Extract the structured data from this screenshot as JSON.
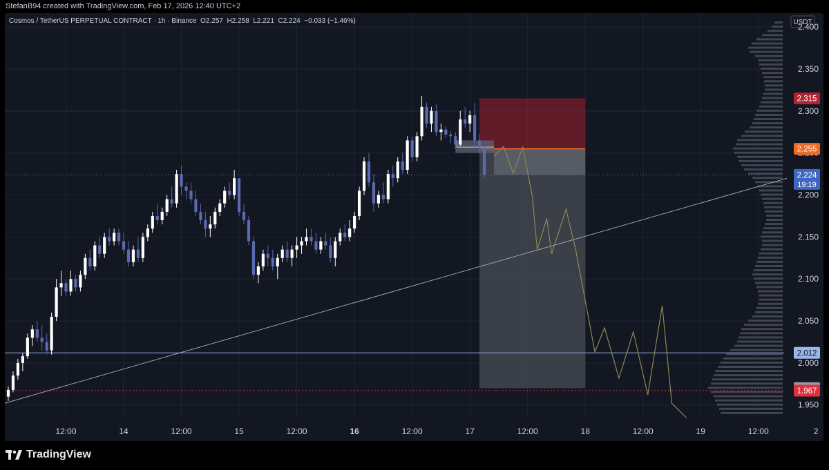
{
  "header": {
    "attribution": "StefanB94 created with TradingView.com, Feb 17, 2026 12:40 UTC+2"
  },
  "legend": {
    "symbol": "Cosmos / TetherUS PERPETUAL CONTRACT · 1h · Binance",
    "open": "O2.257",
    "high": "H2.258",
    "low": "L2.221",
    "close": "C2.224",
    "change": "−0.033 (−1.46%)"
  },
  "footer": {
    "brand": "TradingView"
  },
  "colors": {
    "background": "#131722",
    "bull": "#ffffff",
    "bear": "#5b6ab0",
    "stop_zone": "#7a1f2b",
    "target_zone": "#4a4d55",
    "price_line": "#4f7ad1",
    "support_line": "#8aa4d8",
    "projection": "#8c8a55"
  },
  "chart_data": {
    "type": "candlestick",
    "currency": "USDT",
    "ylim": [
      1.935,
      2.41
    ],
    "y_ticks": [
      "2.400",
      "2.350",
      "2.300",
      "2.250",
      "2.200",
      "2.150",
      "2.100",
      "2.050",
      "2.000",
      "1.950"
    ],
    "x_ticks": [
      {
        "label": "12:00",
        "t": 12,
        "bold": false
      },
      {
        "label": "14",
        "t": 24,
        "bold": false
      },
      {
        "label": "12:00",
        "t": 36,
        "bold": false
      },
      {
        "label": "15",
        "t": 48,
        "bold": false
      },
      {
        "label": "12:00",
        "t": 60,
        "bold": false
      },
      {
        "label": "16",
        "t": 72,
        "bold": true
      },
      {
        "label": "12:00",
        "t": 84,
        "bold": false
      },
      {
        "label": "17",
        "t": 96,
        "bold": false
      },
      {
        "label": "12:00",
        "t": 108,
        "bold": false
      },
      {
        "label": "18",
        "t": 120,
        "bold": false
      },
      {
        "label": "12:00",
        "t": 132,
        "bold": false
      },
      {
        "label": "19",
        "t": 144,
        "bold": false
      },
      {
        "label": "12:00",
        "t": 156,
        "bold": false
      },
      {
        "label": "2",
        "t": 168,
        "bold": false
      }
    ],
    "candles": [
      [
        1.96,
        1.972,
        1.955,
        1.968
      ],
      [
        1.968,
        1.99,
        1.965,
        1.985
      ],
      [
        1.985,
        2.005,
        1.98,
        2.0
      ],
      [
        2.0,
        2.012,
        1.99,
        2.008
      ],
      [
        2.008,
        2.035,
        2.005,
        2.03
      ],
      [
        2.03,
        2.045,
        2.02,
        2.04
      ],
      [
        2.04,
        2.05,
        2.025,
        2.03
      ],
      [
        2.03,
        2.045,
        2.015,
        2.025
      ],
      [
        2.025,
        2.035,
        2.01,
        2.015
      ],
      [
        2.015,
        2.06,
        2.01,
        2.055
      ],
      [
        2.055,
        2.1,
        2.05,
        2.09
      ],
      [
        2.09,
        2.11,
        2.08,
        2.095
      ],
      [
        2.095,
        2.1,
        2.08,
        2.085
      ],
      [
        2.085,
        2.11,
        2.08,
        2.1
      ],
      [
        2.1,
        2.105,
        2.085,
        2.09
      ],
      [
        2.09,
        2.11,
        2.085,
        2.105
      ],
      [
        2.105,
        2.13,
        2.1,
        2.125
      ],
      [
        2.125,
        2.135,
        2.11,
        2.115
      ],
      [
        2.115,
        2.145,
        2.11,
        2.14
      ],
      [
        2.14,
        2.15,
        2.125,
        2.13
      ],
      [
        2.13,
        2.155,
        2.125,
        2.15
      ],
      [
        2.15,
        2.16,
        2.14,
        2.145
      ],
      [
        2.145,
        2.16,
        2.14,
        2.155
      ],
      [
        2.155,
        2.16,
        2.14,
        2.145
      ],
      [
        2.145,
        2.155,
        2.13,
        2.135
      ],
      [
        2.135,
        2.145,
        2.115,
        2.12
      ],
      [
        2.12,
        2.14,
        2.115,
        2.135
      ],
      [
        2.135,
        2.15,
        2.12,
        2.125
      ],
      [
        2.125,
        2.155,
        2.12,
        2.15
      ],
      [
        2.15,
        2.165,
        2.145,
        2.16
      ],
      [
        2.16,
        2.18,
        2.155,
        2.175
      ],
      [
        2.175,
        2.19,
        2.165,
        2.17
      ],
      [
        2.17,
        2.185,
        2.165,
        2.18
      ],
      [
        2.18,
        2.2,
        2.175,
        2.195
      ],
      [
        2.195,
        2.21,
        2.185,
        2.19
      ],
      [
        2.19,
        2.23,
        2.185,
        2.225
      ],
      [
        2.225,
        2.235,
        2.2,
        2.21
      ],
      [
        2.21,
        2.215,
        2.195,
        2.205
      ],
      [
        2.205,
        2.215,
        2.19,
        2.195
      ],
      [
        2.195,
        2.205,
        2.175,
        2.18
      ],
      [
        2.18,
        2.19,
        2.165,
        2.17
      ],
      [
        2.17,
        2.18,
        2.15,
        2.16
      ],
      [
        2.16,
        2.175,
        2.15,
        2.165
      ],
      [
        2.165,
        2.185,
        2.16,
        2.18
      ],
      [
        2.18,
        2.195,
        2.175,
        2.19
      ],
      [
        2.19,
        2.21,
        2.185,
        2.205
      ],
      [
        2.205,
        2.215,
        2.195,
        2.2
      ],
      [
        2.2,
        2.23,
        2.195,
        2.22
      ],
      [
        2.22,
        2.22,
        2.175,
        2.18
      ],
      [
        2.18,
        2.19,
        2.165,
        2.17
      ],
      [
        2.17,
        2.175,
        2.14,
        2.145
      ],
      [
        2.145,
        2.15,
        2.1,
        2.105
      ],
      [
        2.105,
        2.12,
        2.095,
        2.115
      ],
      [
        2.115,
        2.135,
        2.11,
        2.13
      ],
      [
        2.13,
        2.14,
        2.115,
        2.125
      ],
      [
        2.125,
        2.135,
        2.11,
        2.115
      ],
      [
        2.115,
        2.13,
        2.1,
        2.125
      ],
      [
        2.125,
        2.14,
        2.12,
        2.135
      ],
      [
        2.135,
        2.145,
        2.12,
        2.125
      ],
      [
        2.125,
        2.14,
        2.115,
        2.135
      ],
      [
        2.135,
        2.15,
        2.125,
        2.14
      ],
      [
        2.14,
        2.15,
        2.13,
        2.145
      ],
      [
        2.145,
        2.16,
        2.14,
        2.15
      ],
      [
        2.15,
        2.16,
        2.14,
        2.145
      ],
      [
        2.145,
        2.155,
        2.13,
        2.135
      ],
      [
        2.135,
        2.15,
        2.13,
        2.145
      ],
      [
        2.145,
        2.155,
        2.135,
        2.14
      ],
      [
        2.14,
        2.15,
        2.12,
        2.125
      ],
      [
        2.125,
        2.15,
        2.115,
        2.145
      ],
      [
        2.145,
        2.16,
        2.14,
        2.155
      ],
      [
        2.155,
        2.165,
        2.145,
        2.15
      ],
      [
        2.15,
        2.17,
        2.145,
        2.16
      ],
      [
        2.16,
        2.18,
        2.155,
        2.175
      ],
      [
        2.175,
        2.21,
        2.17,
        2.205
      ],
      [
        2.205,
        2.245,
        2.2,
        2.24
      ],
      [
        2.24,
        2.25,
        2.21,
        2.215
      ],
      [
        2.215,
        2.225,
        2.18,
        2.19
      ],
      [
        2.19,
        2.205,
        2.185,
        2.2
      ],
      [
        2.2,
        2.215,
        2.19,
        2.195
      ],
      [
        2.195,
        2.23,
        2.19,
        2.225
      ],
      [
        2.225,
        2.235,
        2.21,
        2.22
      ],
      [
        2.22,
        2.245,
        2.215,
        2.24
      ],
      [
        2.24,
        2.25,
        2.225,
        2.23
      ],
      [
        2.23,
        2.27,
        2.225,
        2.265
      ],
      [
        2.265,
        2.27,
        2.24,
        2.245
      ],
      [
        2.245,
        2.275,
        2.24,
        2.27
      ],
      [
        2.27,
        2.318,
        2.265,
        2.305
      ],
      [
        2.305,
        2.31,
        2.28,
        2.285
      ],
      [
        2.285,
        2.305,
        2.275,
        2.3
      ],
      [
        2.3,
        2.308,
        2.27,
        2.275
      ],
      [
        2.275,
        2.285,
        2.265,
        2.278
      ],
      [
        2.278,
        2.282,
        2.268,
        2.272
      ],
      [
        2.272,
        2.276,
        2.262,
        2.27
      ],
      [
        2.27,
        2.275,
        2.255,
        2.26
      ],
      [
        2.26,
        2.3,
        2.258,
        2.29
      ],
      [
        2.29,
        2.305,
        2.28,
        2.285
      ],
      [
        2.285,
        2.3,
        2.275,
        2.295
      ],
      [
        2.295,
        2.31,
        2.255,
        2.265
      ],
      [
        2.265,
        2.272,
        2.25,
        2.257
      ],
      [
        2.257,
        2.258,
        2.221,
        2.224
      ]
    ],
    "candle_start_t": 0,
    "position": {
      "t_start": 98,
      "t_end": 120,
      "stop": 2.315,
      "entry": 2.255,
      "target": 1.97
    },
    "entry_box": {
      "t_start": 93,
      "t_end": 101,
      "top": 2.265,
      "bottom": 2.25
    },
    "current_price_zone": {
      "t_start": 101,
      "t_end": 120,
      "top": 2.255,
      "bottom": 2.224
    },
    "trendline": {
      "t1": -2,
      "p1": 1.95,
      "t2": 165,
      "p2": 2.225
    },
    "support_line": 2.012,
    "dotted_low_line": 1.967,
    "dotted_price_line": 2.224,
    "projection": [
      [
        101,
        2.246
      ],
      [
        103,
        2.258
      ],
      [
        105,
        2.226
      ],
      [
        107,
        2.257
      ],
      [
        109,
        2.198
      ],
      [
        110,
        2.135
      ],
      [
        112,
        2.172
      ],
      [
        113,
        2.13
      ],
      [
        116,
        2.183
      ],
      [
        118,
        2.135
      ],
      [
        122,
        2.013
      ],
      [
        124,
        2.042
      ],
      [
        127,
        1.982
      ],
      [
        130,
        2.037
      ],
      [
        133,
        1.962
      ],
      [
        136,
        2.068
      ],
      [
        138,
        1.952
      ],
      [
        141,
        1.935
      ]
    ],
    "price_labels": [
      {
        "text": "2.315",
        "price": 2.315,
        "bg": "#b22333",
        "fg": "#ffffff"
      },
      {
        "text": "2.255",
        "price": 2.255,
        "bg": "#f06a22",
        "fg": "#ffffff"
      },
      {
        "text": "2.224",
        "price": 2.224,
        "bg": "#3f66c4",
        "fg": "#ffffff",
        "sub": "19:19"
      },
      {
        "text": "2.012",
        "price": 2.012,
        "bg": "#9bb7e6",
        "fg": "#0b1020"
      },
      {
        "text": "1.970",
        "price": 1.97,
        "bg": "#9a9ca3",
        "fg": "#ffffff"
      },
      {
        "text": "1.967",
        "price": 1.967,
        "bg": "#e0303f",
        "fg": "#ffffff"
      }
    ],
    "volume_profile": [
      [
        2.405,
        12
      ],
      [
        2.4,
        16
      ],
      [
        2.395,
        22
      ],
      [
        2.39,
        30
      ],
      [
        2.385,
        38
      ],
      [
        2.38,
        45
      ],
      [
        2.375,
        50
      ],
      [
        2.37,
        48
      ],
      [
        2.365,
        40
      ],
      [
        2.36,
        36
      ],
      [
        2.355,
        34
      ],
      [
        2.35,
        32
      ],
      [
        2.345,
        30
      ],
      [
        2.34,
        28
      ],
      [
        2.335,
        27
      ],
      [
        2.33,
        26
      ],
      [
        2.325,
        26
      ],
      [
        2.32,
        28
      ],
      [
        2.315,
        30
      ],
      [
        2.31,
        32
      ],
      [
        2.305,
        34
      ],
      [
        2.3,
        38
      ],
      [
        2.295,
        40
      ],
      [
        2.29,
        42
      ],
      [
        2.285,
        44
      ],
      [
        2.28,
        48
      ],
      [
        2.275,
        55
      ],
      [
        2.27,
        60
      ],
      [
        2.265,
        66
      ],
      [
        2.26,
        68
      ],
      [
        2.255,
        72
      ],
      [
        2.25,
        70
      ],
      [
        2.245,
        66
      ],
      [
        2.24,
        64
      ],
      [
        2.235,
        60
      ],
      [
        2.23,
        56
      ],
      [
        2.225,
        50
      ],
      [
        2.22,
        44
      ],
      [
        2.215,
        40
      ],
      [
        2.21,
        36
      ],
      [
        2.205,
        34
      ],
      [
        2.2,
        32
      ],
      [
        2.195,
        30
      ],
      [
        2.19,
        28
      ],
      [
        2.185,
        27
      ],
      [
        2.18,
        26
      ],
      [
        2.175,
        24
      ],
      [
        2.17,
        24
      ],
      [
        2.165,
        26
      ],
      [
        2.16,
        28
      ],
      [
        2.155,
        30
      ],
      [
        2.15,
        32
      ],
      [
        2.145,
        30
      ],
      [
        2.14,
        30
      ],
      [
        2.135,
        32
      ],
      [
        2.13,
        34
      ],
      [
        2.125,
        36
      ],
      [
        2.12,
        38
      ],
      [
        2.115,
        40
      ],
      [
        2.11,
        42
      ],
      [
        2.105,
        44
      ],
      [
        2.1,
        42
      ],
      [
        2.095,
        40
      ],
      [
        2.09,
        38
      ],
      [
        2.085,
        36
      ],
      [
        2.08,
        34
      ],
      [
        2.075,
        34
      ],
      [
        2.07,
        36
      ],
      [
        2.065,
        38
      ],
      [
        2.06,
        40
      ],
      [
        2.055,
        44
      ],
      [
        2.05,
        50
      ],
      [
        2.045,
        56
      ],
      [
        2.04,
        60
      ],
      [
        2.035,
        62
      ],
      [
        2.03,
        64
      ],
      [
        2.025,
        66
      ],
      [
        2.02,
        70
      ],
      [
        2.015,
        76
      ],
      [
        2.01,
        82
      ],
      [
        2.005,
        86
      ],
      [
        2.0,
        90
      ],
      [
        1.995,
        94
      ],
      [
        1.99,
        98
      ],
      [
        1.985,
        100
      ],
      [
        1.98,
        102
      ],
      [
        1.975,
        104
      ],
      [
        1.97,
        108
      ],
      [
        1.965,
        104
      ],
      [
        1.96,
        100
      ],
      [
        1.955,
        98
      ],
      [
        1.95,
        95
      ],
      [
        1.945,
        92
      ],
      [
        1.94,
        90
      ]
    ]
  }
}
